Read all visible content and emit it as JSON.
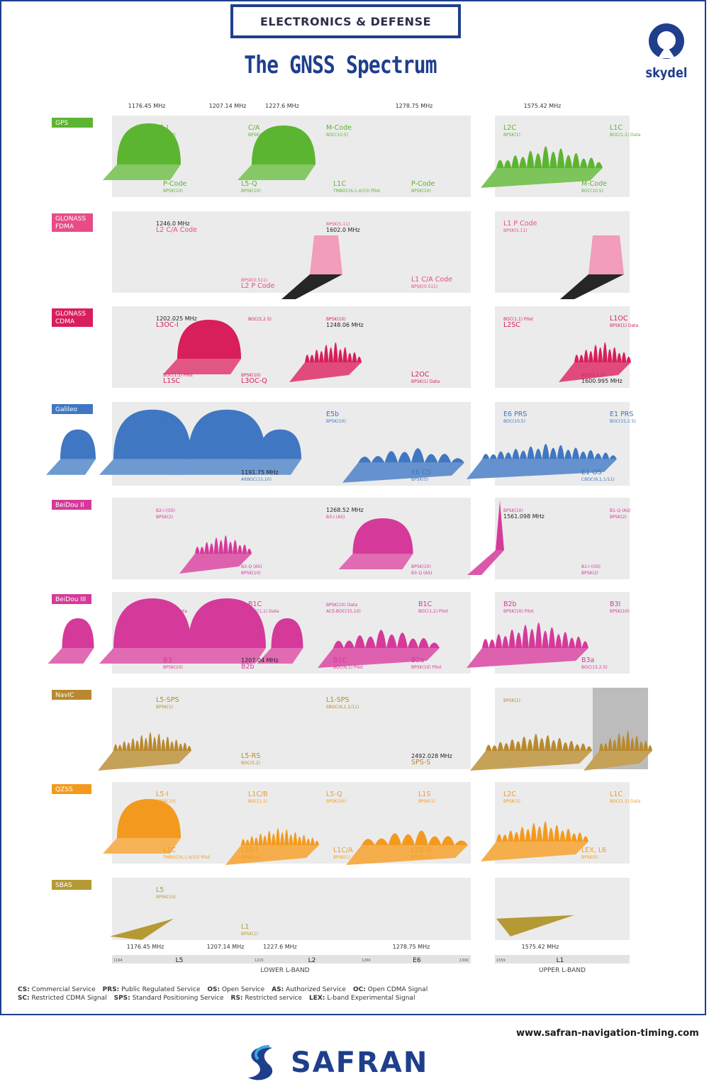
{
  "header": {
    "banner": "ELECTRONICS & DEFENSE",
    "title": "The GNSS Spectrum",
    "brand": "skydel"
  },
  "top_freqs": [
    "1176.45 MHz",
    "1207.14 MHz",
    "1227.6 MHz",
    "1278.75 MHz",
    "1575.42 MHz"
  ],
  "rows": [
    {
      "name": "GPS",
      "color": "#5cb531",
      "labels": [
        "L5-I",
        "BPSK(10)",
        "L5-Q",
        "BPSK(10)",
        "M-Code",
        "BOC(10,5)",
        "P-Code",
        "BPSK(10)",
        "L2C",
        "BPSK(1)",
        "M-Code",
        "BOC(10,5)",
        "L1C",
        "BOC(1,1) Data",
        "P-Code",
        "BPSK(10)",
        "C/A",
        "BPSK(1)",
        "L1C",
        "TMBOC(6,1,4/33) Pilot"
      ]
    },
    {
      "name": "GLONASS FDMA",
      "color": "#e74c86",
      "labels": [
        "1246.0 MHz",
        "L2 C/A Code",
        "BPSK(0.511)",
        "L2 P Code",
        "BPSK(5.11)",
        "1602.0 MHz",
        "L1 C/A Code",
        "BPSK(0.511)",
        "L1 P Code",
        "BPSK(5.11)"
      ]
    },
    {
      "name": "GLONASS CDMA",
      "color": "#d81e5b",
      "labels": [
        "1202.025 MHz",
        "L3OC-I",
        "BPSK(10)",
        "L3OC-Q",
        "BPSK(10)",
        "1248.06 MHz",
        "L2OC",
        "BPSK(1) Data",
        "BOC(1,1) Pilot",
        "L2SC",
        "BOC(5,2.5)",
        "1600.995 MHz",
        "L1OC",
        "BPSK(1) Data",
        "BOC(1,1) Pilot",
        "L1SC",
        "BOC(5,2.5)"
      ]
    },
    {
      "name": "Galileo",
      "color": "#3f77c2",
      "labels": [
        "E5a",
        "BPSK(10)",
        "1191.75 MHz",
        "AltBOC(15,10)",
        "E5b",
        "BPSK(10)",
        "E6 CS",
        "BPSK(5)",
        "E6 PRS",
        "BOC(10,5)",
        "E1 OS",
        "CBOC(6,1,1/11)",
        "E1 PRS",
        "BOC(15,2.5)"
      ]
    },
    {
      "name": "BeiDou II",
      "color": "#d53a9a",
      "labels": [
        "B2-I (OS)",
        "BPSK(2)",
        "B2-Q (AS)",
        "BPSK(10)",
        "1268.52 MHz",
        "B3-I (AS)",
        "BPSK(10)",
        "B3-Q (AS)",
        "BPSK(10)",
        "1561.098 MHz",
        "B1-I (OS)",
        "BPSK(2)",
        "B1-Q (AS)",
        "BPSK(2)"
      ]
    },
    {
      "name": "BeiDou III",
      "color": "#d53a9a",
      "labels": [
        "B2a",
        "BPSK(10) Data",
        "1207.04 MHz",
        "B2b",
        "BPSK(10) Data",
        "ACE-BOC(15,10)",
        "B2a",
        "BPSK(10) Pilot",
        "B2b",
        "BPSK(10) Pilot",
        "B3a",
        "BOC(15,2.5)",
        "B3I",
        "BPSK(10)",
        "B3",
        "BPSK(10)",
        "B1C",
        "BOC(1,1) Data",
        "B1C",
        "BOC(6,1) Pilot",
        "B1C",
        "BOC(1,1) Pilot"
      ]
    },
    {
      "name": "NavIC",
      "color": "#b8892e",
      "labels": [
        "L5-SPS",
        "BPSK(1)",
        "L5-RS",
        "BOC(5,2)",
        "L1-SPS",
        "SBOC(6,1,1/11)",
        "2492.028 MHz",
        "SPS-S",
        "BPSK(1)"
      ]
    },
    {
      "name": "QZSS",
      "color": "#f39a1e",
      "labels": [
        "L5-I",
        "BPSK(10)",
        "L5S-I",
        "BPSK(10)",
        "L5-Q",
        "BPSK(10)",
        "L5S-Q",
        "BPSK(10)",
        "L2C",
        "BPSK(1)",
        "LEX, L6",
        "BPSK(5)",
        "L1C",
        "BOC(1,1) Data",
        "L1C",
        "TMBOC(6,1,4/33) Pilot",
        "L1C/B",
        "BOC(1,1)",
        "L1C/A",
        "BPSK(1)",
        "L1S",
        "BPSK(1)"
      ]
    },
    {
      "name": "SBAS",
      "color": "#b49a34",
      "labels": [
        "L5",
        "BPSK(10)",
        "L1",
        "BPSK(1)"
      ]
    }
  ],
  "bottom_freqs": [
    "1176.45 MHz",
    "1207.14 MHz",
    "1227.6 MHz",
    "1278.75 MHz",
    "1575.42 MHz"
  ],
  "bands": [
    "L5",
    "L2",
    "E6",
    "L1"
  ],
  "axis_ticks": [
    "1164",
    "1215",
    "1260",
    "1300",
    "1559"
  ],
  "band_names": [
    "LOWER L-BAND",
    "UPPER L-BAND"
  ],
  "legend": [
    {
      "abbr": "CS",
      "text": "Commercial Service"
    },
    {
      "abbr": "PRS",
      "text": "Public Regulated Service"
    },
    {
      "abbr": "OS",
      "text": "Open Service"
    },
    {
      "abbr": "AS",
      "text": "Authorized Service"
    },
    {
      "abbr": "OC",
      "text": "Open CDMA Signal"
    },
    {
      "abbr": "SC",
      "text": "Restricted CDMA Signal"
    },
    {
      "abbr": "SPS",
      "text": "Standard Positioning Service"
    },
    {
      "abbr": "RS",
      "text": "Restricted service"
    },
    {
      "abbr": "LEX",
      "text": "L-band Experimental Signal"
    }
  ],
  "footer": {
    "website": "www.safran-navigation-timing.com",
    "company": "SAFRAN"
  }
}
